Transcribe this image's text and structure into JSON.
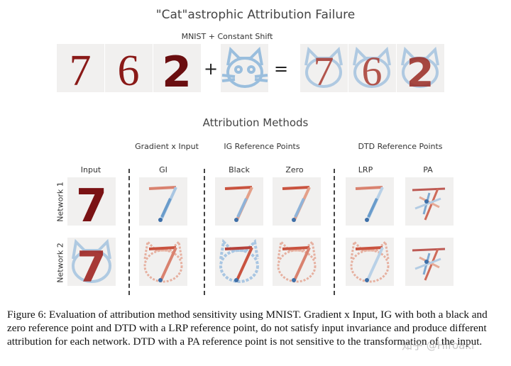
{
  "figure": {
    "title": "\"Cat\"astrophic Attribution Failure",
    "subtitle": "MNIST + Constant Shift",
    "plus_symbol": "+",
    "equals_symbol": "=",
    "top_digits": [
      "7",
      "6",
      "2"
    ]
  },
  "methods": {
    "title": "Attribution Methods",
    "groups": [
      "Gradient x Input",
      "IG Reference Points",
      "DTD Reference Points"
    ],
    "columns": [
      "Input",
      "GI",
      "Black",
      "Zero",
      "LRP",
      "PA"
    ],
    "rows": [
      "Network 1",
      "Network 2"
    ]
  },
  "caption": "Figure 6: Evaluation of attribution method sensitivity using MNIST. Gradient x Input, IG with both a black and zero reference point and DTD with a LRP reference point, do not satisfy input invariance and produce different attribution for each network. DTD with a PA reference point is not sensitive to the transformation of the input.",
  "watermark": "知乎 @Hiroaki",
  "colors": {
    "ink": "#7a1214",
    "positive": "#b5413a",
    "negative": "#6a9ccb",
    "tile_bg": "#f1f0ef"
  }
}
